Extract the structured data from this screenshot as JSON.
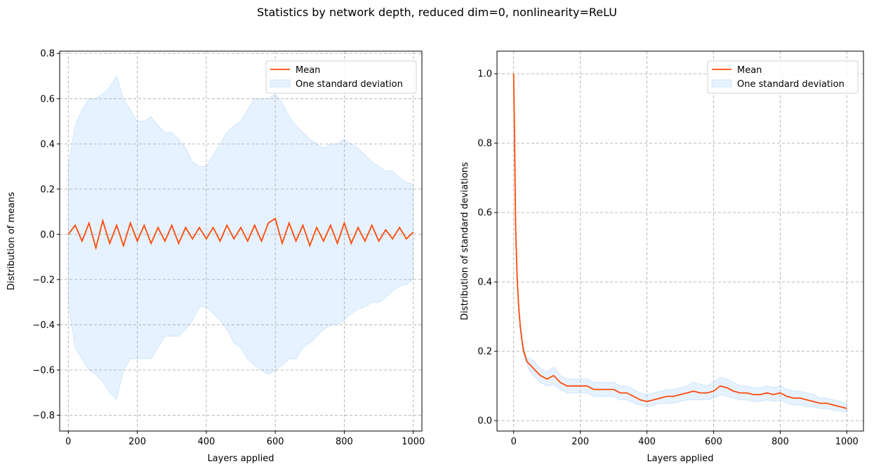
{
  "title": "Statistics by network depth, reduced dim=0, nonlinearity=ReLU",
  "colors": {
    "mean": "#ff4a0a",
    "band_fill": "#e6f2ff",
    "band_edge": "#cfe5fb",
    "grid": "#b0b0b0"
  },
  "chart_data": [
    {
      "type": "line",
      "xlabel": "Layers applied",
      "ylabel": "Distribution of means",
      "xlim": [
        -25,
        1025
      ],
      "ylim": [
        -0.87,
        0.81
      ],
      "xticks": [
        0,
        200,
        400,
        600,
        800,
        1000
      ],
      "yticks": [
        -0.8,
        -0.6,
        -0.4,
        -0.2,
        0.0,
        0.2,
        0.4,
        0.6,
        0.8
      ],
      "ytick_labels": [
        "−0.8",
        "−0.6",
        "−0.4",
        "−0.2",
        "0.0",
        "0.2",
        "0.4",
        "0.6",
        "0.8"
      ],
      "grid": true,
      "legend": "top-right",
      "series": [
        {
          "name": "Mean",
          "kind": "line",
          "x": [
            0,
            20,
            40,
            60,
            80,
            100,
            120,
            140,
            160,
            180,
            200,
            220,
            240,
            260,
            280,
            300,
            320,
            340,
            360,
            380,
            400,
            420,
            440,
            460,
            480,
            500,
            520,
            540,
            560,
            580,
            600,
            620,
            640,
            660,
            680,
            700,
            720,
            740,
            760,
            780,
            800,
            820,
            840,
            860,
            880,
            900,
            920,
            940,
            960,
            980,
            1000
          ],
          "y": [
            0.0,
            0.04,
            -0.03,
            0.05,
            -0.06,
            0.06,
            -0.04,
            0.04,
            -0.05,
            0.05,
            -0.03,
            0.04,
            -0.04,
            0.03,
            -0.03,
            0.04,
            -0.04,
            0.03,
            -0.02,
            0.03,
            -0.02,
            0.03,
            -0.03,
            0.04,
            -0.02,
            0.03,
            -0.03,
            0.04,
            -0.03,
            0.05,
            0.07,
            -0.04,
            0.05,
            -0.03,
            0.04,
            -0.05,
            0.03,
            -0.03,
            0.04,
            -0.04,
            0.05,
            -0.04,
            0.03,
            -0.03,
            0.04,
            -0.03,
            0.02,
            -0.02,
            0.03,
            -0.02,
            0.01
          ]
        },
        {
          "name": "One standard deviation",
          "kind": "band",
          "x": [
            0,
            20,
            40,
            60,
            80,
            100,
            120,
            140,
            160,
            180,
            200,
            220,
            240,
            260,
            280,
            300,
            320,
            340,
            360,
            380,
            400,
            420,
            440,
            460,
            480,
            500,
            520,
            540,
            560,
            580,
            600,
            620,
            640,
            660,
            680,
            700,
            720,
            740,
            760,
            780,
            800,
            820,
            840,
            860,
            880,
            900,
            920,
            940,
            960,
            980,
            1000
          ],
          "lower": [
            -0.3,
            -0.5,
            -0.55,
            -0.6,
            -0.62,
            -0.65,
            -0.7,
            -0.73,
            -0.6,
            -0.55,
            -0.55,
            -0.55,
            -0.55,
            -0.5,
            -0.45,
            -0.45,
            -0.45,
            -0.42,
            -0.38,
            -0.32,
            -0.32,
            -0.35,
            -0.38,
            -0.42,
            -0.48,
            -0.5,
            -0.55,
            -0.58,
            -0.6,
            -0.62,
            -0.6,
            -0.58,
            -0.55,
            -0.55,
            -0.5,
            -0.48,
            -0.45,
            -0.42,
            -0.4,
            -0.4,
            -0.38,
            -0.35,
            -0.33,
            -0.32,
            -0.3,
            -0.3,
            -0.28,
            -0.25,
            -0.23,
            -0.22,
            -0.2
          ],
          "upper": [
            0.3,
            0.48,
            0.55,
            0.6,
            0.6,
            0.62,
            0.65,
            0.7,
            0.6,
            0.55,
            0.5,
            0.5,
            0.52,
            0.48,
            0.45,
            0.45,
            0.42,
            0.38,
            0.32,
            0.3,
            0.3,
            0.35,
            0.4,
            0.45,
            0.48,
            0.5,
            0.55,
            0.6,
            0.6,
            0.6,
            0.62,
            0.58,
            0.52,
            0.48,
            0.45,
            0.42,
            0.4,
            0.38,
            0.4,
            0.4,
            0.42,
            0.4,
            0.38,
            0.35,
            0.32,
            0.3,
            0.28,
            0.28,
            0.25,
            0.23,
            0.22
          ]
        }
      ]
    },
    {
      "type": "line",
      "xlabel": "Layers applied",
      "ylabel": "Distribution of standard deviations",
      "xlim": [
        -50,
        1050
      ],
      "ylim": [
        -0.03,
        1.065
      ],
      "xticks": [
        0,
        200,
        400,
        600,
        800,
        1000
      ],
      "yticks": [
        0.0,
        0.2,
        0.4,
        0.6,
        0.8,
        1.0
      ],
      "ytick_labels": [
        "0.0",
        "0.2",
        "0.4",
        "0.6",
        "0.8",
        "1.0"
      ],
      "grid": true,
      "legend": "top-right",
      "series": [
        {
          "name": "Mean",
          "kind": "line",
          "x": [
            0,
            3,
            6,
            10,
            15,
            20,
            25,
            30,
            40,
            50,
            60,
            70,
            80,
            100,
            120,
            140,
            160,
            180,
            200,
            220,
            240,
            260,
            280,
            300,
            320,
            340,
            360,
            380,
            400,
            420,
            440,
            460,
            480,
            500,
            520,
            540,
            560,
            580,
            600,
            620,
            640,
            660,
            680,
            700,
            720,
            740,
            760,
            780,
            800,
            820,
            840,
            860,
            880,
            900,
            920,
            940,
            960,
            980,
            1000
          ],
          "y": [
            1.0,
            0.78,
            0.55,
            0.42,
            0.33,
            0.27,
            0.23,
            0.2,
            0.17,
            0.16,
            0.15,
            0.14,
            0.13,
            0.12,
            0.13,
            0.11,
            0.1,
            0.1,
            0.1,
            0.1,
            0.09,
            0.09,
            0.09,
            0.09,
            0.08,
            0.08,
            0.07,
            0.06,
            0.055,
            0.06,
            0.065,
            0.07,
            0.07,
            0.075,
            0.08,
            0.085,
            0.08,
            0.08,
            0.085,
            0.1,
            0.095,
            0.085,
            0.08,
            0.08,
            0.075,
            0.075,
            0.08,
            0.075,
            0.08,
            0.07,
            0.065,
            0.065,
            0.06,
            0.055,
            0.05,
            0.05,
            0.045,
            0.04,
            0.035
          ]
        },
        {
          "name": "One standard deviation",
          "kind": "band",
          "x": [
            0,
            3,
            6,
            10,
            15,
            20,
            25,
            30,
            40,
            50,
            60,
            70,
            80,
            100,
            120,
            140,
            160,
            180,
            200,
            220,
            240,
            260,
            280,
            300,
            320,
            340,
            360,
            380,
            400,
            420,
            440,
            460,
            480,
            500,
            520,
            540,
            560,
            580,
            600,
            620,
            640,
            660,
            680,
            700,
            720,
            740,
            760,
            780,
            800,
            820,
            840,
            860,
            880,
            900,
            920,
            940,
            960,
            980,
            1000
          ],
          "lower": [
            1.0,
            0.78,
            0.55,
            0.41,
            0.32,
            0.26,
            0.22,
            0.19,
            0.16,
            0.14,
            0.13,
            0.12,
            0.11,
            0.1,
            0.105,
            0.09,
            0.08,
            0.08,
            0.08,
            0.08,
            0.07,
            0.07,
            0.07,
            0.07,
            0.06,
            0.06,
            0.05,
            0.045,
            0.04,
            0.045,
            0.05,
            0.05,
            0.05,
            0.055,
            0.06,
            0.06,
            0.06,
            0.06,
            0.065,
            0.075,
            0.07,
            0.065,
            0.06,
            0.06,
            0.055,
            0.055,
            0.06,
            0.055,
            0.06,
            0.05,
            0.045,
            0.045,
            0.04,
            0.04,
            0.035,
            0.035,
            0.03,
            0.028,
            0.025
          ],
          "upper": [
            1.0,
            0.78,
            0.55,
            0.43,
            0.34,
            0.28,
            0.24,
            0.21,
            0.18,
            0.18,
            0.17,
            0.16,
            0.15,
            0.14,
            0.155,
            0.13,
            0.12,
            0.12,
            0.12,
            0.12,
            0.11,
            0.11,
            0.11,
            0.11,
            0.1,
            0.1,
            0.09,
            0.08,
            0.075,
            0.08,
            0.085,
            0.09,
            0.09,
            0.095,
            0.1,
            0.11,
            0.105,
            0.1,
            0.11,
            0.125,
            0.12,
            0.11,
            0.1,
            0.1,
            0.095,
            0.095,
            0.1,
            0.095,
            0.1,
            0.09,
            0.085,
            0.085,
            0.08,
            0.075,
            0.065,
            0.065,
            0.06,
            0.055,
            0.05
          ]
        }
      ]
    }
  ]
}
